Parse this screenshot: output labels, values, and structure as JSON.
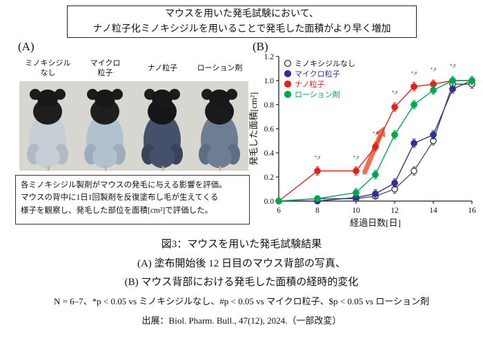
{
  "header": {
    "title_lines": [
      "マウスを用いた発毛試験において、",
      "ナノ粒子化ミノキシジルを用いることで発毛した面積がより早く増加"
    ]
  },
  "panel_a": {
    "label": "(A)",
    "mouse_labels": [
      {
        "lines": [
          "ミノキシジル",
          "なし"
        ]
      },
      {
        "lines": [
          "マイクロ",
          "粒子"
        ]
      },
      {
        "lines": [
          "ナノ粒子"
        ]
      },
      {
        "lines": [
          "ローション剤"
        ]
      }
    ],
    "mouse_colors": [
      {
        "back": "#c6cdd4",
        "haunch": "#b0bac4",
        "shoulder": "#1e1e1e"
      },
      {
        "back": "#b3c0cd",
        "haunch": "#9dadbe",
        "shoulder": "#1e1e1e"
      },
      {
        "back": "#45506b",
        "haunch": "#3a4458",
        "shoulder": "#15151a"
      },
      {
        "back": "#6d7e94",
        "haunch": "#5c6d84",
        "shoulder": "#1a1a1e"
      }
    ],
    "description_lines": [
      "各ミノキシジル製剤がマウスの発毛に与える影響を評価。",
      "マウスの背中に1日1回製剤を反復塗布し毛が生えてくる",
      "様子を観察し、発毛した部位を面積[cm²]で評価した。"
    ]
  },
  "panel_b": {
    "label": "(B)"
  },
  "chart_data": {
    "type": "line",
    "x": [
      6,
      8,
      10,
      11,
      12,
      13,
      14,
      15,
      16
    ],
    "series": [
      {
        "name": "ミノキシジルなし",
        "color": "#555555",
        "marker_fill": "#ffffff",
        "marker_stroke": "#333333",
        "label_color": "#111111",
        "values": [
          0,
          0.02,
          0.02,
          0.04,
          0.1,
          0.25,
          0.5,
          0.97,
          0.97
        ]
      },
      {
        "name": "マイクロ粒子",
        "color": "#2e3192",
        "marker_fill": "#2e3192",
        "marker_stroke": "#2e3192",
        "label_color": "#2e3192",
        "values": [
          0,
          0.0,
          0.03,
          0.06,
          0.15,
          0.48,
          0.55,
          0.93,
          1.0
        ]
      },
      {
        "name": "ナノ粒子",
        "color": "#e0231a",
        "marker_fill": "#e0231a",
        "marker_stroke": "#e0231a",
        "label_color": "#e0231a",
        "values": [
          0,
          0.25,
          0.25,
          0.45,
          0.78,
          0.95,
          0.97,
          1.0,
          1.0
        ]
      },
      {
        "name": "ローション剤",
        "color": "#00a650",
        "marker_fill": "#00a650",
        "marker_stroke": "#00a650",
        "label_color": "#00a650",
        "values": [
          0,
          0.02,
          0.07,
          0.22,
          0.55,
          0.8,
          0.92,
          1.0,
          1.0
        ]
      }
    ],
    "title": "",
    "xlabel": "経過日数[日]",
    "ylabel": "発毛した面積[cm²]",
    "xlim": [
      6,
      16
    ],
    "ylim": [
      0,
      1.2
    ],
    "xticks": [
      6,
      8,
      10,
      12,
      14,
      16
    ],
    "yticks": [
      "0.0",
      "0.2",
      "0.4",
      "0.6",
      "0.8",
      "1.0",
      "1.2"
    ],
    "grid": false,
    "legend_position": "top-left",
    "annotations": [
      {
        "x": 8,
        "y": 0.31,
        "text": "*,#"
      },
      {
        "x": 10,
        "y": 0.31,
        "text": "*,#"
      },
      {
        "x": 11,
        "y": 0.51,
        "text": "*,#"
      },
      {
        "x": 12,
        "y": 0.85,
        "text": "*,#"
      },
      {
        "x": 13,
        "y": 1.01,
        "text": "*,#"
      },
      {
        "x": 14,
        "y": 1.04,
        "text": "*,#"
      },
      {
        "x": 15,
        "y": 1.07,
        "text": "*,#"
      }
    ],
    "arrow": {
      "from": [
        10.45,
        0.24
      ],
      "to": [
        11.45,
        0.62
      ],
      "color": "#f0563a"
    }
  },
  "caption": {
    "line1": "図3：マウスを用いた発毛試験結果",
    "line2": "(A) 塗布開始後 12 日目のマウス背部の写真、",
    "line3": "(B) マウス背部における発毛した面積の経時的変化",
    "stats_note": "N = 6–7、*p < 0.05 vs ミノキシジルなし、#p < 0.05 vs マイクロ粒子、$p < 0.05 vs ローション剤",
    "source": "出展：Biol. Pharm. Bull., 47(12), 2024.（一部改変）"
  }
}
